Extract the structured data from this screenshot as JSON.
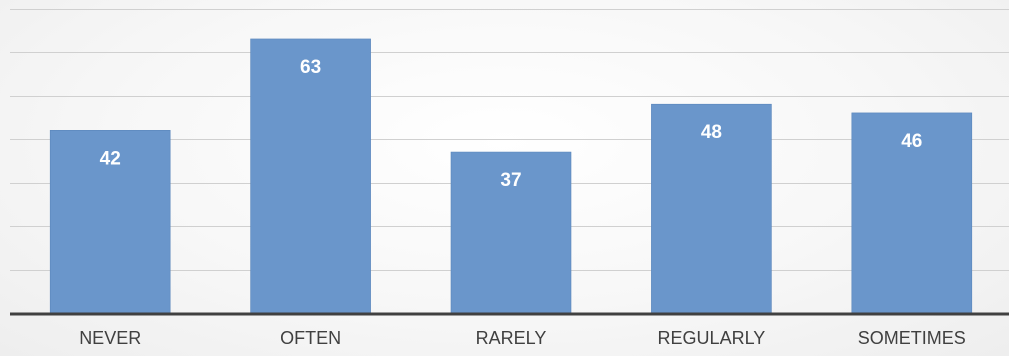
{
  "chart_data": {
    "type": "bar",
    "categories": [
      "NEVER",
      "OFTEN",
      "RARELY",
      "REGULARLY",
      "SOMETIMES"
    ],
    "values": [
      42,
      63,
      37,
      48,
      46
    ],
    "data_labels": [
      "42",
      "63",
      "37",
      "48",
      "46"
    ],
    "title": "",
    "xlabel": "",
    "ylabel": "",
    "ylim": [
      0,
      70
    ],
    "grid": true,
    "legend": "none",
    "colors": {
      "bar": "#6a96cb",
      "bar_stroke": "#5a86bb",
      "gridline": "#d0d0d0",
      "axis": "#404040",
      "label_inside": "#ffffff",
      "category_label": "#404040"
    }
  }
}
